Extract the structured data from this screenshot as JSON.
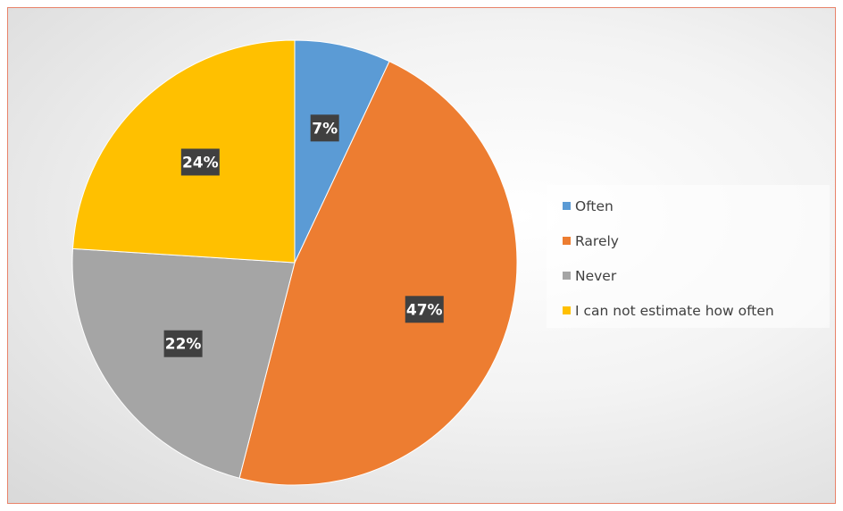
{
  "chart_data": {
    "type": "pie",
    "categories": [
      "Often",
      "Rarely",
      "Never",
      "I can not estimate how often"
    ],
    "values": [
      7,
      47,
      22,
      24
    ],
    "data_labels": [
      "7%",
      "47%",
      "22%",
      "24%"
    ],
    "colors": [
      "#5b9bd5",
      "#ed7d31",
      "#a5a5a5",
      "#ffc000"
    ],
    "start_angle_deg": 0,
    "direction": "clockwise",
    "legend_position": "right",
    "title": ""
  },
  "legend": {
    "items": [
      {
        "label": "Often",
        "color": "#5b9bd5"
      },
      {
        "label": "Rarely",
        "color": "#ed7d31"
      },
      {
        "label": "Never",
        "color": "#a5a5a5"
      },
      {
        "label": "I can not estimate how often",
        "color": "#ffc000"
      }
    ]
  }
}
